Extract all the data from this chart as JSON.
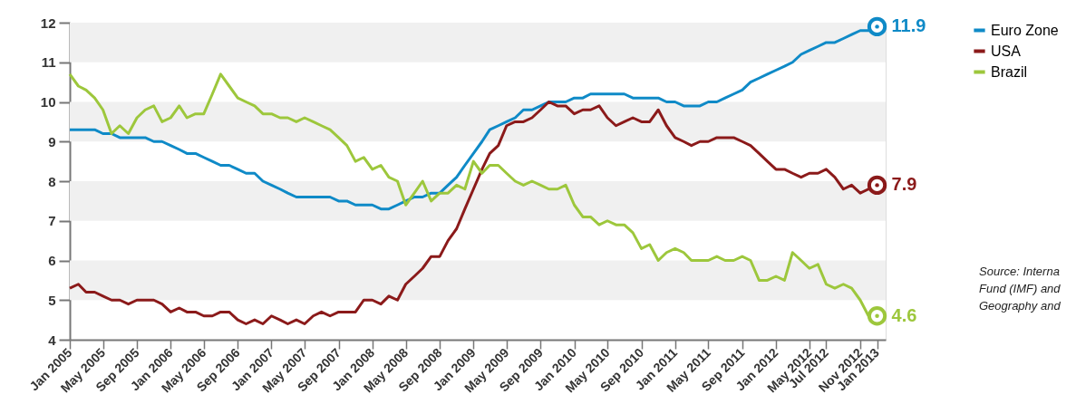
{
  "chart_data": {
    "type": "line",
    "x": [
      "2005-01",
      "2005-02",
      "2005-03",
      "2005-04",
      "2005-05",
      "2005-06",
      "2005-07",
      "2005-08",
      "2005-09",
      "2005-10",
      "2005-11",
      "2005-12",
      "2006-01",
      "2006-02",
      "2006-03",
      "2006-04",
      "2006-05",
      "2006-06",
      "2006-07",
      "2006-08",
      "2006-09",
      "2006-10",
      "2006-11",
      "2006-12",
      "2007-01",
      "2007-02",
      "2007-03",
      "2007-04",
      "2007-05",
      "2007-06",
      "2007-07",
      "2007-08",
      "2007-09",
      "2007-10",
      "2007-11",
      "2007-12",
      "2008-01",
      "2008-02",
      "2008-03",
      "2008-04",
      "2008-05",
      "2008-06",
      "2008-07",
      "2008-08",
      "2008-09",
      "2008-10",
      "2008-11",
      "2008-12",
      "2009-01",
      "2009-02",
      "2009-03",
      "2009-04",
      "2009-05",
      "2009-06",
      "2009-07",
      "2009-08",
      "2009-09",
      "2009-10",
      "2009-11",
      "2009-12",
      "2010-01",
      "2010-02",
      "2010-03",
      "2010-04",
      "2010-05",
      "2010-06",
      "2010-07",
      "2010-08",
      "2010-09",
      "2010-10",
      "2010-11",
      "2010-12",
      "2011-01",
      "2011-02",
      "2011-03",
      "2011-04",
      "2011-05",
      "2011-06",
      "2011-07",
      "2011-08",
      "2011-09",
      "2011-10",
      "2011-11",
      "2011-12",
      "2012-01",
      "2012-02",
      "2012-03",
      "2012-04",
      "2012-05",
      "2012-06",
      "2012-07",
      "2012-08",
      "2012-09",
      "2012-10",
      "2012-11",
      "2012-12",
      "2013-01"
    ],
    "series": [
      {
        "name": "Euro Zone",
        "color": "#0f8ac7",
        "values": [
          9.3,
          9.3,
          9.3,
          9.3,
          9.2,
          9.2,
          9.1,
          9.1,
          9.1,
          9.1,
          9.0,
          9.0,
          8.9,
          8.8,
          8.7,
          8.7,
          8.6,
          8.5,
          8.4,
          8.4,
          8.3,
          8.2,
          8.2,
          8.0,
          7.9,
          7.8,
          7.7,
          7.6,
          7.6,
          7.6,
          7.6,
          7.6,
          7.5,
          7.5,
          7.4,
          7.4,
          7.4,
          7.3,
          7.3,
          7.4,
          7.5,
          7.6,
          7.6,
          7.7,
          7.7,
          7.9,
          8.1,
          8.4,
          8.7,
          9.0,
          9.3,
          9.4,
          9.5,
          9.6,
          9.8,
          9.8,
          9.9,
          10.0,
          10.0,
          10.0,
          10.1,
          10.1,
          10.2,
          10.2,
          10.2,
          10.2,
          10.2,
          10.1,
          10.1,
          10.1,
          10.1,
          10.0,
          10.0,
          9.9,
          9.9,
          9.9,
          10.0,
          10.0,
          10.1,
          10.2,
          10.3,
          10.5,
          10.6,
          10.7,
          10.8,
          10.9,
          11.0,
          11.2,
          11.3,
          11.4,
          11.5,
          11.5,
          11.6,
          11.7,
          11.8,
          11.8,
          11.9
        ]
      },
      {
        "name": "USA",
        "color": "#8b1a1a",
        "values": [
          5.3,
          5.4,
          5.2,
          5.2,
          5.1,
          5.0,
          5.0,
          4.9,
          5.0,
          5.0,
          5.0,
          4.9,
          4.7,
          4.8,
          4.7,
          4.7,
          4.6,
          4.6,
          4.7,
          4.7,
          4.5,
          4.4,
          4.5,
          4.4,
          4.6,
          4.5,
          4.4,
          4.5,
          4.4,
          4.6,
          4.7,
          4.6,
          4.7,
          4.7,
          4.7,
          5.0,
          5.0,
          4.9,
          5.1,
          5.0,
          5.4,
          5.6,
          5.8,
          6.1,
          6.1,
          6.5,
          6.8,
          7.3,
          7.8,
          8.3,
          8.7,
          8.9,
          9.4,
          9.5,
          9.5,
          9.6,
          9.8,
          10.0,
          9.9,
          9.9,
          9.7,
          9.8,
          9.8,
          9.9,
          9.6,
          9.4,
          9.5,
          9.6,
          9.5,
          9.5,
          9.8,
          9.4,
          9.1,
          9.0,
          8.9,
          9.0,
          9.0,
          9.1,
          9.1,
          9.1,
          9.0,
          8.9,
          8.7,
          8.5,
          8.3,
          8.3,
          8.2,
          8.1,
          8.2,
          8.2,
          8.3,
          8.1,
          7.8,
          7.9,
          7.7,
          7.8,
          7.9
        ]
      },
      {
        "name": "Brazil",
        "color": "#9dc73c",
        "values": [
          10.7,
          10.4,
          10.3,
          10.1,
          9.8,
          9.2,
          9.4,
          9.2,
          9.6,
          9.8,
          9.9,
          9.5,
          9.6,
          9.9,
          9.6,
          9.7,
          9.7,
          10.2,
          10.7,
          10.4,
          10.1,
          10.0,
          9.9,
          9.7,
          9.7,
          9.6,
          9.6,
          9.5,
          9.6,
          9.5,
          9.4,
          9.3,
          9.1,
          8.9,
          8.5,
          8.6,
          8.3,
          8.4,
          8.1,
          8.0,
          7.4,
          7.7,
          8.0,
          7.5,
          7.7,
          7.7,
          7.9,
          7.8,
          8.5,
          8.2,
          8.4,
          8.4,
          8.2,
          8.0,
          7.9,
          8.0,
          7.9,
          7.8,
          7.8,
          7.9,
          7.4,
          7.1,
          7.1,
          6.9,
          7.0,
          6.9,
          6.9,
          6.7,
          6.3,
          6.4,
          6.0,
          6.2,
          6.3,
          6.2,
          6.0,
          6.0,
          6.0,
          6.1,
          6.0,
          6.0,
          6.1,
          6.0,
          5.5,
          5.5,
          5.6,
          5.5,
          6.2,
          6.0,
          5.8,
          5.9,
          5.4,
          5.3,
          5.4,
          5.3,
          5.0,
          4.6,
          4.6
        ]
      }
    ],
    "xlim": [
      "2005-01",
      "2013-02"
    ],
    "xticks": [
      {
        "value": "2005-01",
        "label": "Jan 2005"
      },
      {
        "value": "2005-05",
        "label": "May 2005"
      },
      {
        "value": "2005-09",
        "label": "Sep 2005"
      },
      {
        "value": "2006-01",
        "label": "Jan 2006"
      },
      {
        "value": "2006-05",
        "label": "May 2006"
      },
      {
        "value": "2006-09",
        "label": "Sep 2006"
      },
      {
        "value": "2007-01",
        "label": "Jan 2007"
      },
      {
        "value": "2007-05",
        "label": "May 2007"
      },
      {
        "value": "2007-09",
        "label": "Sep 2007"
      },
      {
        "value": "2008-01",
        "label": "Jan 2008"
      },
      {
        "value": "2008-05",
        "label": "May 2008"
      },
      {
        "value": "2008-09",
        "label": "Sep 2008"
      },
      {
        "value": "2009-01",
        "label": "Jan 2009"
      },
      {
        "value": "2009-05",
        "label": "May 2009"
      },
      {
        "value": "2009-09",
        "label": "Sep 2009"
      },
      {
        "value": "2010-01",
        "label": "Jan 2010"
      },
      {
        "value": "2010-05",
        "label": "May 2010"
      },
      {
        "value": "2010-09",
        "label": "Sep 2010"
      },
      {
        "value": "2011-01",
        "label": "Jan 2011"
      },
      {
        "value": "2011-05",
        "label": "May 2011"
      },
      {
        "value": "2011-09",
        "label": "Sep 2011"
      },
      {
        "value": "2012-01",
        "label": "Jan 2012"
      },
      {
        "value": "2012-05",
        "label": "May 2012"
      },
      {
        "value": "2012-07",
        "label": "Jul 2012"
      },
      {
        "value": "2012-11",
        "label": "Nov 2012"
      },
      {
        "value": "2013-01",
        "label": "Jan 2013"
      }
    ],
    "ylim": [
      4,
      12
    ],
    "yticks": [
      4,
      5,
      6,
      7,
      8,
      9,
      10,
      11,
      12
    ],
    "bands": [
      {
        "axis": "y",
        "from": 5,
        "to": 6,
        "color": "#f0f0f0"
      },
      {
        "axis": "y",
        "from": 7,
        "to": 8,
        "color": "#f0f0f0"
      },
      {
        "axis": "y",
        "from": 9,
        "to": 10,
        "color": "#f0f0f0"
      },
      {
        "axis": "y",
        "from": 11,
        "to": 12,
        "color": "#f0f0f0"
      }
    ],
    "annotations": [
      {
        "text": "11.9",
        "x": "2013-01",
        "y": 11.9
      },
      {
        "text": "7.9",
        "x": "2013-01",
        "y": 7.9
      },
      {
        "text": "4.6",
        "x": "2013-01",
        "y": 4.6
      },
      "Source: Interna",
      "Fund (IMF) and",
      "Geography and"
    ],
    "legend": "right",
    "line_style": "solid"
  }
}
